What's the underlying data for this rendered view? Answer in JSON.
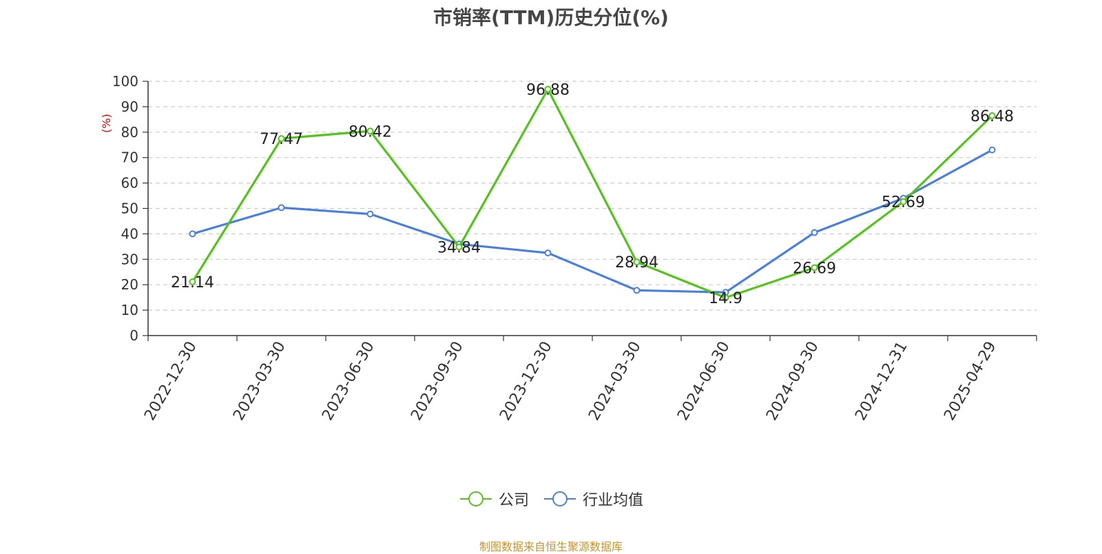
{
  "chart_data": {
    "type": "line",
    "title": "市销率(TTM)历史分位(%)",
    "ylabel": "(%)",
    "xlabel": "",
    "ylim": [
      0,
      100
    ],
    "yticks": [
      0,
      10,
      20,
      30,
      40,
      50,
      60,
      70,
      80,
      90,
      100
    ],
    "categories": [
      "2022-12-30",
      "2023-03-30",
      "2023-06-30",
      "2023-09-30",
      "2023-12-30",
      "2024-03-30",
      "2024-06-30",
      "2024-09-30",
      "2024-12-31",
      "2025-04-29"
    ],
    "grid": true,
    "legend_position": "bottom",
    "series": [
      {
        "name": "公司",
        "color": "#52c41a",
        "values": [
          21.14,
          77.47,
          80.42,
          34.84,
          96.88,
          28.94,
          14.9,
          26.69,
          52.69,
          86.48
        ],
        "labels": [
          "21.14",
          "77.47",
          "80.42",
          "34.84",
          "96.88",
          "28.94",
          "14.9",
          "26.69",
          "52.69",
          "86.48"
        ]
      },
      {
        "name": "行业均值",
        "color": "#4a7fdc",
        "values": [
          40,
          50.3,
          47.8,
          36,
          32.5,
          17.8,
          17,
          40.5,
          54,
          73
        ]
      }
    ]
  },
  "source": "制图数据来自恒生聚源数据库"
}
